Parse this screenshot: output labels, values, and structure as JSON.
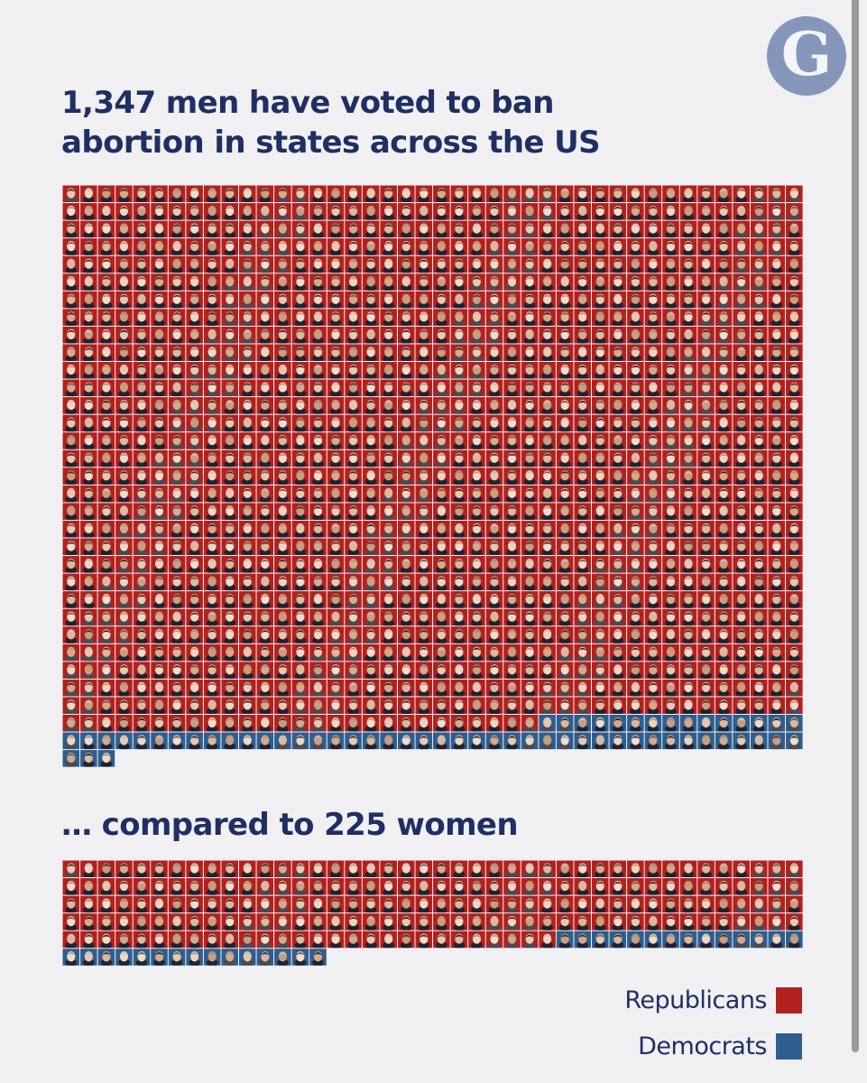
{
  "logo": {
    "letter": "G"
  },
  "headline_top": {
    "bold": "1,347 men",
    "rest": " have voted to ban abortion in states across the US …"
  },
  "headline_bottom": {
    "lead": "… compared to ",
    "bold": "225 women"
  },
  "colors": {
    "republican": "#b2211e",
    "democrat": "#2e5e8e",
    "headline": "#1f2f63",
    "background": "#f0f0f2",
    "logo": "#8596bb"
  },
  "chart_data": [
    {
      "type": "waffle",
      "group": "men",
      "total": 1347,
      "series": [
        {
          "name": "Republicans",
          "color_key": "republican"
        },
        {
          "name": "Democrats",
          "color_key": "democrat"
        }
      ]
    },
    {
      "type": "waffle",
      "group": "women",
      "total": 225,
      "series": [
        {
          "name": "Republicans",
          "color_key": "republican"
        },
        {
          "name": "Democrats",
          "color_key": "democrat"
        }
      ]
    }
  ],
  "legend": [
    {
      "label": "Republicans",
      "color_key": "republican"
    },
    {
      "label": "Democrats",
      "color_key": "democrat"
    }
  ]
}
